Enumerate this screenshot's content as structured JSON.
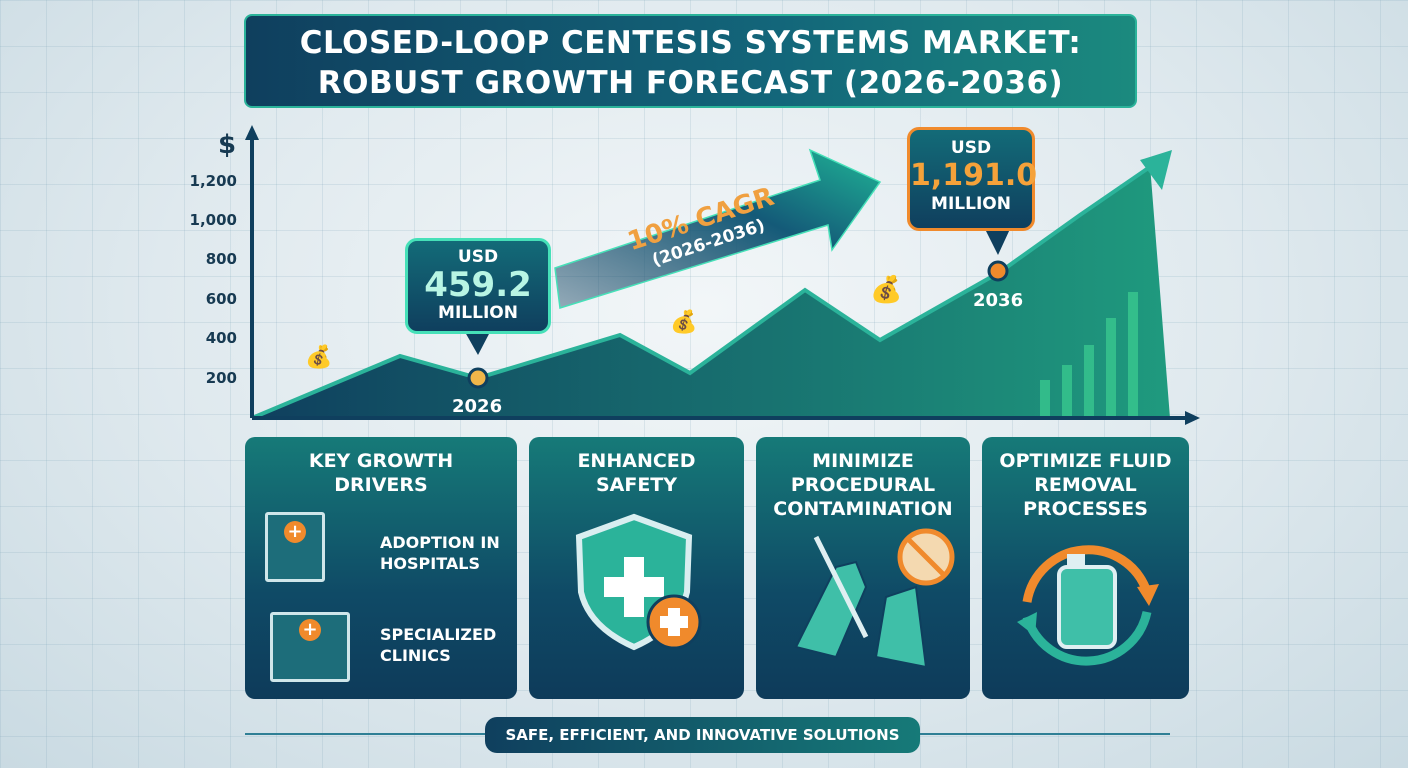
{
  "title": {
    "line1": "CLOSED-LOOP CENTESIS SYSTEMS MARKET:",
    "line2": "ROBUST GROWTH FORECAST (2026-2036)"
  },
  "axis": {
    "y_symbol": "$",
    "y_ticks": [
      "1,200",
      "1,000",
      "800",
      "600",
      "400",
      "200"
    ]
  },
  "callouts": [
    {
      "prefix": "USD",
      "value": "459.2",
      "unit": "MILLION",
      "year": "2026"
    },
    {
      "prefix": "USD",
      "value": "1,191.0",
      "unit": "MILLION",
      "year": "2036"
    }
  ],
  "cagr": {
    "label": "10% CAGR",
    "period": "(2026-2036)"
  },
  "cards": [
    {
      "title": "KEY GROWTH DRIVERS",
      "items": [
        "ADOPTION IN HOSPITALS",
        "SPECIALIZED CLINICS"
      ]
    },
    {
      "title": "ENHANCED SAFETY"
    },
    {
      "title": "MINIMIZE PROCEDURAL CONTAMINATION"
    },
    {
      "title": "OPTIMIZE FLUID REMOVAL PROCESSES"
    }
  ],
  "footer": "SAFE, EFFICIENT, AND INNOVATIVE SOLUTIONS",
  "colors": {
    "navy": "#0f3f5e",
    "teal": "#167a78",
    "green": "#2bb39a",
    "orange": "#f08a2c"
  }
}
